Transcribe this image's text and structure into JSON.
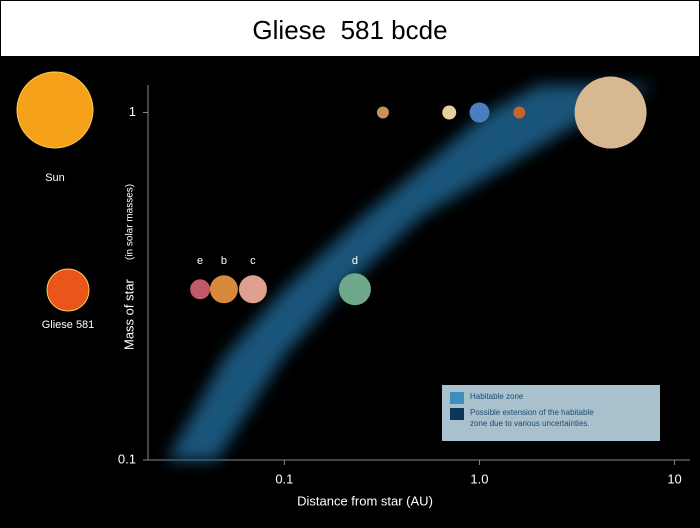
{
  "chart_data": {
    "type": "scatter",
    "title": "Gliese  581 bcde",
    "xlabel": "Distance from star (AU)",
    "ylabel": "Mass of star",
    "ylabel_note": "(in solar masses)",
    "log_x": true,
    "log_y": true,
    "xlim": [
      0.02,
      12
    ],
    "ylim": [
      0.1,
      1.2
    ],
    "xticks": [
      0.1,
      {
        "value": 1,
        "label": "1.0"
      },
      10
    ],
    "yticks": [
      0.1,
      1
    ],
    "stars": [
      {
        "label": "Sun",
        "color": "#f5a21a"
      },
      {
        "label": "Gliese 581",
        "color": "#e8561c"
      }
    ],
    "planets": {
      "labels": [
        "e",
        "b",
        "c",
        "d"
      ],
      "x": [
        0.037,
        0.049,
        0.069,
        0.23
      ],
      "y": [
        0.31,
        0.31,
        0.31,
        0.31
      ],
      "colors": [
        "#c05a6a",
        "#d88a3a",
        "#e0a090",
        "#6fa88a"
      ]
    },
    "solar_planets": {
      "x": [
        0.32,
        0.7,
        1,
        1.6,
        4.7
      ],
      "y": [
        1,
        1,
        1,
        1,
        1
      ],
      "colors": [
        "#c4925a",
        "#e8cfa0",
        "#4a7ec0",
        "#c8642a",
        "#d8b890"
      ]
    },
    "habitable_zone": {
      "y": [
        0.1,
        0.2,
        0.31,
        0.5,
        1,
        1.2
      ],
      "inner_x": [
        0.025,
        0.05,
        0.1,
        0.25,
        1.1,
        2
      ],
      "outer_x": [
        0.045,
        0.1,
        0.2,
        0.5,
        4,
        8
      ],
      "color": "#1d5f88"
    },
    "legend_position": "lower right",
    "legend": [
      {
        "label": [
          "Habitable zone"
        ],
        "color": "#3a8fbf"
      },
      {
        "label": [
          "Possible extension of the habitable",
          "zone due to various uncertainties."
        ],
        "color": "#0e3457"
      }
    ]
  }
}
